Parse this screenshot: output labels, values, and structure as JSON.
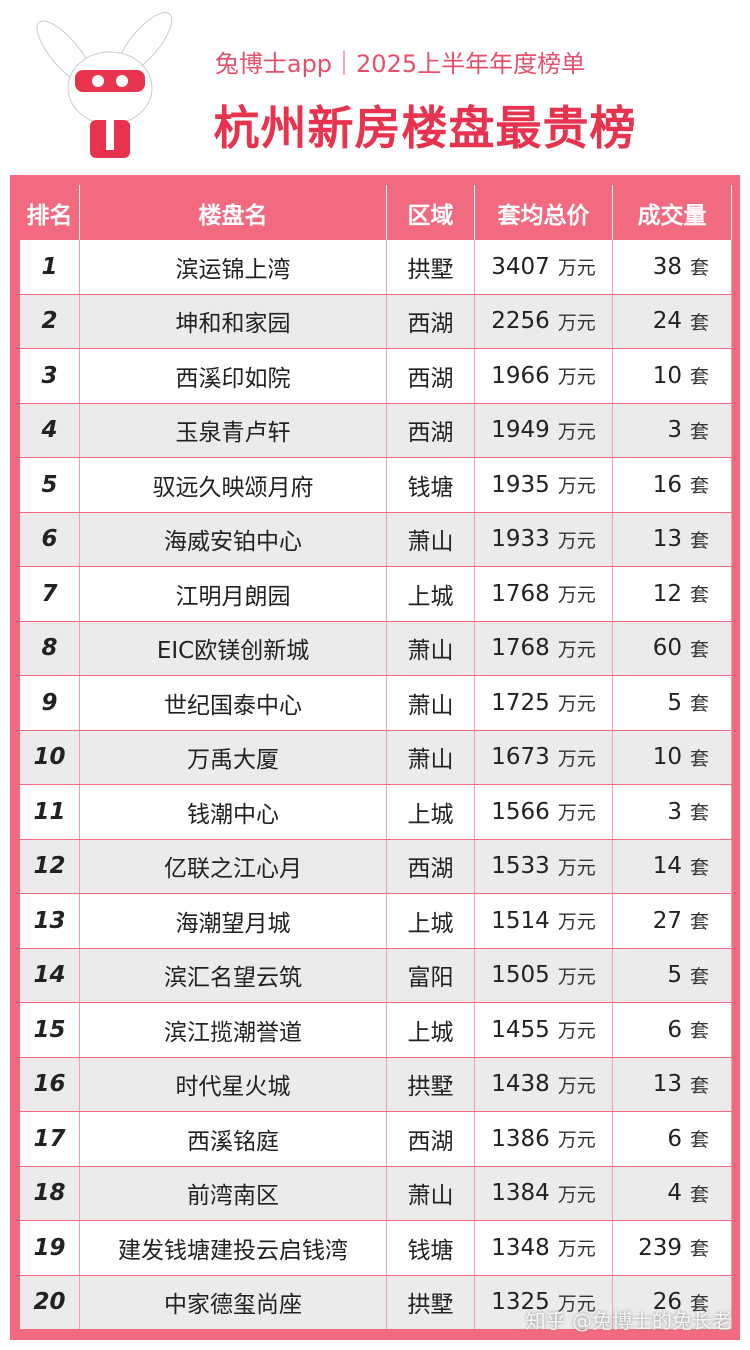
{
  "header": {
    "subtitle": "兔博士app｜2025上半年年度榜单",
    "title": "杭州新房楼盘最贵榜"
  },
  "table": {
    "columns": [
      "排名",
      "楼盘名",
      "区域",
      "套均总价",
      "成交量"
    ],
    "rows": [
      {
        "rank": 1,
        "name": "滨运锦上湾",
        "district": "拱墅",
        "price": 3407,
        "price_unit": "万元",
        "count": 38,
        "count_unit": "套"
      },
      {
        "rank": 2,
        "name": "坤和和家园",
        "district": "西湖",
        "price": 2256,
        "price_unit": "万元",
        "count": 24,
        "count_unit": "套"
      },
      {
        "rank": 3,
        "name": "西溪印如院",
        "district": "西湖",
        "price": 1966,
        "price_unit": "万元",
        "count": 10,
        "count_unit": "套"
      },
      {
        "rank": 4,
        "name": "玉泉青卢轩",
        "district": "西湖",
        "price": 1949,
        "price_unit": "万元",
        "count": 3,
        "count_unit": "套"
      },
      {
        "rank": 5,
        "name": "驭远久映颂月府",
        "district": "钱塘",
        "price": 1935,
        "price_unit": "万元",
        "count": 16,
        "count_unit": "套"
      },
      {
        "rank": 6,
        "name": "海威安铂中心",
        "district": "萧山",
        "price": 1933,
        "price_unit": "万元",
        "count": 13,
        "count_unit": "套"
      },
      {
        "rank": 7,
        "name": "江明月朗园",
        "district": "上城",
        "price": 1768,
        "price_unit": "万元",
        "count": 12,
        "count_unit": "套"
      },
      {
        "rank": 8,
        "name": "EIC欧镁创新城",
        "district": "萧山",
        "price": 1768,
        "price_unit": "万元",
        "count": 60,
        "count_unit": "套"
      },
      {
        "rank": 9,
        "name": "世纪国泰中心",
        "district": "萧山",
        "price": 1725,
        "price_unit": "万元",
        "count": 5,
        "count_unit": "套"
      },
      {
        "rank": 10,
        "name": "万禹大厦",
        "district": "萧山",
        "price": 1673,
        "price_unit": "万元",
        "count": 10,
        "count_unit": "套"
      },
      {
        "rank": 11,
        "name": "钱潮中心",
        "district": "上城",
        "price": 1566,
        "price_unit": "万元",
        "count": 3,
        "count_unit": "套"
      },
      {
        "rank": 12,
        "name": "亿联之江心月",
        "district": "西湖",
        "price": 1533,
        "price_unit": "万元",
        "count": 14,
        "count_unit": "套"
      },
      {
        "rank": 13,
        "name": "海潮望月城",
        "district": "上城",
        "price": 1514,
        "price_unit": "万元",
        "count": 27,
        "count_unit": "套"
      },
      {
        "rank": 14,
        "name": "滨汇名望云筑",
        "district": "富阳",
        "price": 1505,
        "price_unit": "万元",
        "count": 5,
        "count_unit": "套"
      },
      {
        "rank": 15,
        "name": "滨江揽潮誉道",
        "district": "上城",
        "price": 1455,
        "price_unit": "万元",
        "count": 6,
        "count_unit": "套"
      },
      {
        "rank": 16,
        "name": "时代星火城",
        "district": "拱墅",
        "price": 1438,
        "price_unit": "万元",
        "count": 13,
        "count_unit": "套"
      },
      {
        "rank": 17,
        "name": "西溪铭庭",
        "district": "西湖",
        "price": 1386,
        "price_unit": "万元",
        "count": 6,
        "count_unit": "套"
      },
      {
        "rank": 18,
        "name": "前湾南区",
        "district": "萧山",
        "price": 1384,
        "price_unit": "万元",
        "count": 4,
        "count_unit": "套"
      },
      {
        "rank": 19,
        "name": "建发钱塘建投云启钱湾",
        "district": "钱塘",
        "price": 1348,
        "price_unit": "万元",
        "count": 239,
        "count_unit": "套"
      },
      {
        "rank": 20,
        "name": "中家德玺尚座",
        "district": "拱墅",
        "price": 1325,
        "price_unit": "万元",
        "count": 26,
        "count_unit": "套"
      }
    ]
  },
  "watermark": "知乎 @兔博士的兔长老"
}
